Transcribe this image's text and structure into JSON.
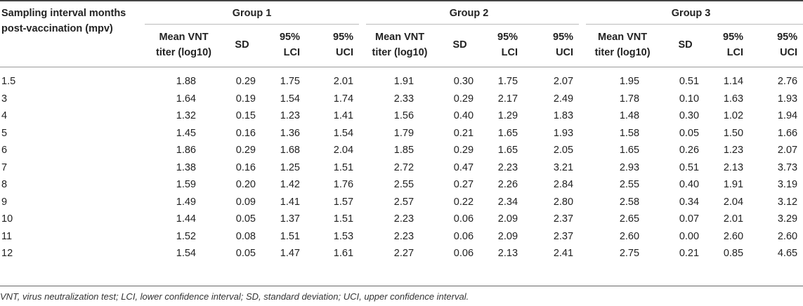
{
  "header": {
    "corner_line1": "Sampling interval months",
    "corner_line2": "post-vaccination (mpv)",
    "groups": [
      "Group 1",
      "Group 2",
      "Group 3"
    ],
    "sub": {
      "mean_line1": "Mean VNT",
      "mean_line2": "titer (log10)",
      "sd": "SD",
      "lci_line1": "95%",
      "lci_line2": "LCI",
      "uci_line1": "95%",
      "uci_line2": "UCI"
    }
  },
  "rows": [
    {
      "mpv": "1.5",
      "g1": [
        "1.88",
        "0.29",
        "1.75",
        "2.01"
      ],
      "g2": [
        "1.91",
        "0.30",
        "1.75",
        "2.07"
      ],
      "g3": [
        "1.95",
        "0.51",
        "1.14",
        "2.76"
      ]
    },
    {
      "mpv": "3",
      "g1": [
        "1.64",
        "0.19",
        "1.54",
        "1.74"
      ],
      "g2": [
        "2.33",
        "0.29",
        "2.17",
        "2.49"
      ],
      "g3": [
        "1.78",
        "0.10",
        "1.63",
        "1.93"
      ]
    },
    {
      "mpv": "4",
      "g1": [
        "1.32",
        "0.15",
        "1.23",
        "1.41"
      ],
      "g2": [
        "1.56",
        "0.40",
        "1.29",
        "1.83"
      ],
      "g3": [
        "1.48",
        "0.30",
        "1.02",
        "1.94"
      ]
    },
    {
      "mpv": "5",
      "g1": [
        "1.45",
        "0.16",
        "1.36",
        "1.54"
      ],
      "g2": [
        "1.79",
        "0.21",
        "1.65",
        "1.93"
      ],
      "g3": [
        "1.58",
        "0.05",
        "1.50",
        "1.66"
      ]
    },
    {
      "mpv": "6",
      "g1": [
        "1.86",
        "0.29",
        "1.68",
        "2.04"
      ],
      "g2": [
        "1.85",
        "0.29",
        "1.65",
        "2.05"
      ],
      "g3": [
        "1.65",
        "0.26",
        "1.23",
        "2.07"
      ]
    },
    {
      "mpv": "7",
      "g1": [
        "1.38",
        "0.16",
        "1.25",
        "1.51"
      ],
      "g2": [
        "2.72",
        "0.47",
        "2.23",
        "3.21"
      ],
      "g3": [
        "2.93",
        "0.51",
        "2.13",
        "3.73"
      ]
    },
    {
      "mpv": "8",
      "g1": [
        "1.59",
        "0.20",
        "1.42",
        "1.76"
      ],
      "g2": [
        "2.55",
        "0.27",
        "2.26",
        "2.84"
      ],
      "g3": [
        "2.55",
        "0.40",
        "1.91",
        "3.19"
      ]
    },
    {
      "mpv": "9",
      "g1": [
        "1.49",
        "0.09",
        "1.41",
        "1.57"
      ],
      "g2": [
        "2.57",
        "0.22",
        "2.34",
        "2.80"
      ],
      "g3": [
        "2.58",
        "0.34",
        "2.04",
        "3.12"
      ]
    },
    {
      "mpv": "10",
      "g1": [
        "1.44",
        "0.05",
        "1.37",
        "1.51"
      ],
      "g2": [
        "2.23",
        "0.06",
        "2.09",
        "2.37"
      ],
      "g3": [
        "2.65",
        "0.07",
        "2.01",
        "3.29"
      ]
    },
    {
      "mpv": "11",
      "g1": [
        "1.52",
        "0.08",
        "1.51",
        "1.53"
      ],
      "g2": [
        "2.23",
        "0.06",
        "2.09",
        "2.37"
      ],
      "g3": [
        "2.60",
        "0.00",
        "2.60",
        "2.60"
      ]
    },
    {
      "mpv": "12",
      "g1": [
        "1.54",
        "0.05",
        "1.47",
        "1.61"
      ],
      "g2": [
        "2.27",
        "0.06",
        "2.13",
        "2.41"
      ],
      "g3": [
        "2.75",
        "0.21",
        "0.85",
        "4.65"
      ]
    }
  ],
  "footnote": "VNT, virus neutralization test; LCI, lower confidence interval; SD, standard deviation; UCI, upper confidence interval."
}
